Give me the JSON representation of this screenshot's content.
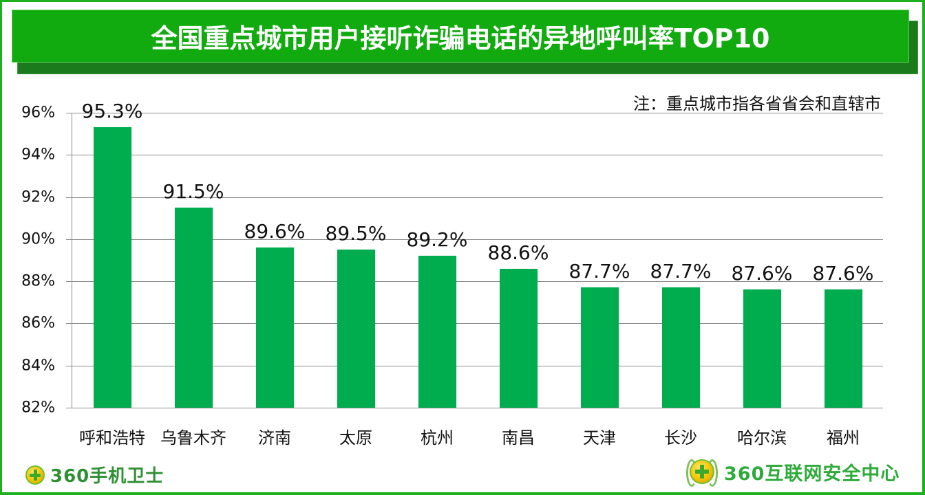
{
  "header": {
    "title": "全国重点城市用户接听诈骗电话的异地呼叫率TOP10",
    "note": "注：重点城市指各省省会和直辖市"
  },
  "colors": {
    "banner": "#11ab0f",
    "banner_shadow": "#1b7a1b",
    "frame": "#1db11d",
    "bar": "#00ad4e",
    "gridline": "#8a8a8a"
  },
  "chart_data": {
    "type": "bar",
    "title": "全国重点城市用户接听诈骗电话的异地呼叫率TOP10",
    "subtitle": "注：重点城市指各省省会和直辖市",
    "categories": [
      "呼和浩特",
      "乌鲁木齐",
      "济南",
      "太原",
      "杭州",
      "南昌",
      "天津",
      "长沙",
      "哈尔滨",
      "福州"
    ],
    "values": [
      95.3,
      91.5,
      89.6,
      89.5,
      89.2,
      88.6,
      87.7,
      87.7,
      87.6,
      87.6
    ],
    "data_labels": [
      "95.3%",
      "91.5%",
      "89.6%",
      "89.5%",
      "89.2%",
      "88.6%",
      "87.7%",
      "87.7%",
      "87.6%",
      "87.6%"
    ],
    "xlabel": "",
    "ylabel": "",
    "ylim": [
      82,
      96
    ],
    "yticks": [
      "82%",
      "84%",
      "86%",
      "88%",
      "90%",
      "92%",
      "94%",
      "96%"
    ],
    "ytick_values": [
      82,
      84,
      86,
      88,
      90,
      92,
      94,
      96
    ],
    "grid": true,
    "legend": null,
    "unit": "%"
  },
  "footer": {
    "left_logo_text": "360手机卫士",
    "right_logo_text": "360互联网安全中心",
    "left_logo_icon": "360-plus-ball-icon",
    "right_logo_icon": "360-laurel-ball-icon"
  }
}
